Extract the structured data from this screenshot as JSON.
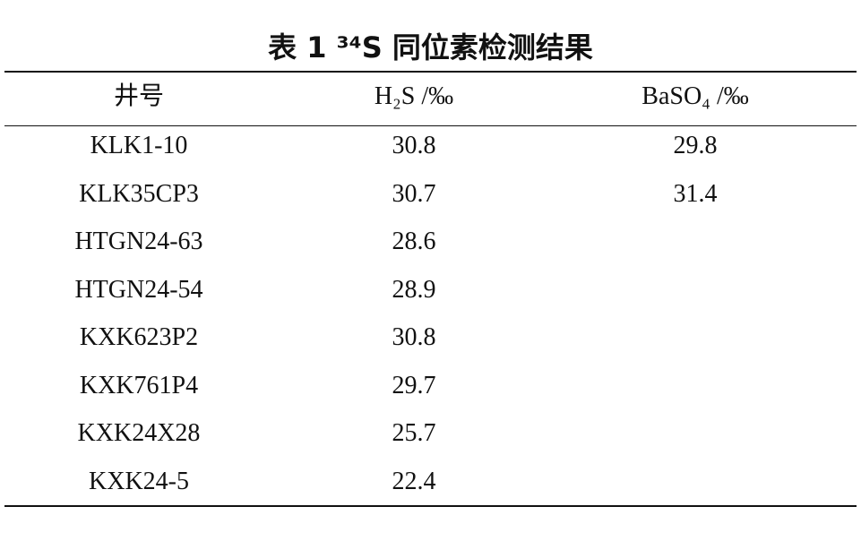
{
  "title": "表 1 ³⁴S 同位素检测结果",
  "table": {
    "header": [
      "井号",
      "H₂S /‰",
      "BaSO₄ /‰"
    ],
    "rows": [
      [
        "KLK1-10",
        "30.8",
        "29.8"
      ],
      [
        "KLK35CP3",
        "30.7",
        "31.4"
      ],
      [
        "HTGN24-63",
        "28.6",
        null
      ],
      [
        "HTGN24-54",
        "28.9",
        null
      ],
      [
        "KXK623P2",
        "30.8",
        null
      ],
      [
        "KXK761P4",
        "29.7",
        null
      ],
      [
        "KXK24X28",
        "25.7",
        null
      ],
      [
        "KXK24-5",
        "22.4",
        null
      ]
    ]
  }
}
